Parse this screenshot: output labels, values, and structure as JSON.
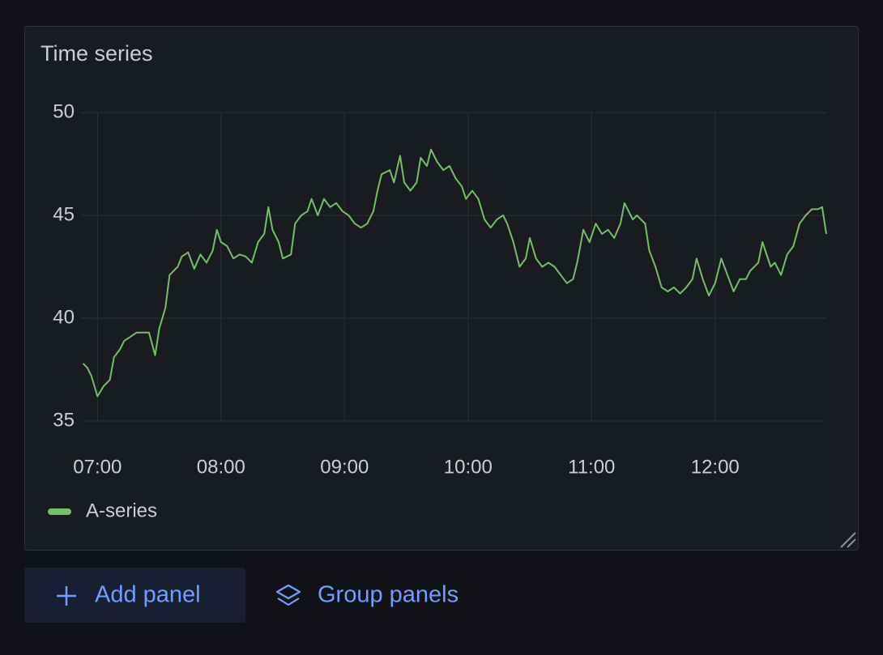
{
  "chart_data": {
    "type": "line",
    "title": "Time series",
    "x": [
      "06:53",
      "06:55",
      "06:57",
      "07:00",
      "07:03",
      "07:06",
      "07:08",
      "07:11",
      "07:13",
      "07:16",
      "07:19",
      "07:22",
      "07:25",
      "07:28",
      "07:30",
      "07:33",
      "07:35",
      "07:39",
      "07:41",
      "07:44",
      "07:47",
      "07:50",
      "07:53",
      "07:56",
      "07:58",
      "08:00",
      "08:03",
      "08:06",
      "08:09",
      "08:12",
      "08:15",
      "08:18",
      "08:21",
      "08:23",
      "08:25",
      "08:28",
      "08:30",
      "08:34",
      "08:36",
      "08:39",
      "08:42",
      "08:44",
      "08:47",
      "08:50",
      "08:53",
      "08:56",
      "08:59",
      "09:02",
      "09:05",
      "09:08",
      "09:11",
      "09:14",
      "09:16",
      "09:18",
      "09:22",
      "09:24",
      "09:27",
      "09:29",
      "09:32",
      "09:35",
      "09:37",
      "09:40",
      "09:42",
      "09:45",
      "09:48",
      "09:51",
      "09:54",
      "09:57",
      "09:59",
      "10:02",
      "10:05",
      "10:08",
      "10:11",
      "10:14",
      "10:17",
      "10:19",
      "10:22",
      "10:25",
      "10:28",
      "10:30",
      "10:33",
      "10:36",
      "10:39",
      "10:42",
      "10:45",
      "10:48",
      "10:51",
      "10:53",
      "10:56",
      "10:59",
      "11:02",
      "11:05",
      "11:08",
      "11:11",
      "11:14",
      "11:16",
      "11:20",
      "11:22",
      "11:26",
      "11:28",
      "11:31",
      "11:34",
      "11:37",
      "11:40",
      "11:43",
      "11:46",
      "11:49",
      "11:51",
      "11:54",
      "11:57",
      "12:00",
      "12:03",
      "12:06",
      "12:09",
      "12:12",
      "12:15",
      "12:17",
      "12:21",
      "12:23",
      "12:27",
      "12:29",
      "12:32",
      "12:35",
      "12:38",
      "12:41",
      "12:44",
      "12:47",
      "12:50",
      "12:52",
      "12:54"
    ],
    "series": [
      {
        "name": "A-series",
        "color": "#73bf69",
        "values": [
          37.8,
          37.6,
          37.2,
          36.2,
          36.7,
          37.0,
          38.1,
          38.5,
          38.9,
          39.1,
          39.3,
          39.3,
          39.3,
          38.2,
          39.5,
          40.5,
          42.1,
          42.5,
          43.0,
          43.2,
          42.4,
          43.1,
          42.7,
          43.3,
          44.3,
          43.7,
          43.5,
          42.9,
          43.1,
          43.0,
          42.7,
          43.7,
          44.1,
          45.4,
          44.3,
          43.7,
          42.9,
          43.1,
          44.6,
          45.0,
          45.2,
          45.8,
          45.0,
          45.8,
          45.4,
          45.6,
          45.2,
          45.0,
          44.6,
          44.4,
          44.6,
          45.2,
          46.2,
          47.0,
          47.2,
          46.6,
          47.9,
          46.6,
          46.2,
          46.6,
          47.8,
          47.4,
          48.2,
          47.6,
          47.2,
          47.4,
          46.8,
          46.4,
          45.8,
          46.2,
          45.8,
          44.8,
          44.4,
          44.8,
          45.0,
          44.6,
          43.7,
          42.5,
          42.9,
          43.9,
          42.9,
          42.5,
          42.7,
          42.5,
          42.1,
          41.7,
          41.9,
          42.7,
          44.3,
          43.7,
          44.6,
          44.1,
          44.3,
          43.9,
          44.6,
          45.6,
          44.8,
          45.0,
          44.6,
          43.3,
          42.5,
          41.5,
          41.3,
          41.5,
          41.2,
          41.5,
          41.9,
          42.9,
          41.9,
          41.1,
          41.7,
          42.9,
          42.1,
          41.3,
          41.9,
          41.9,
          42.3,
          42.7,
          43.7,
          42.5,
          42.7,
          42.1,
          43.1,
          43.5,
          44.6,
          45.0,
          45.3,
          45.3,
          45.4,
          44.1
        ]
      }
    ],
    "xlim": [
      "06:52",
      "12:54"
    ],
    "xticks": [
      "07:00",
      "08:00",
      "09:00",
      "10:00",
      "11:00",
      "12:00"
    ],
    "ylim": [
      35,
      50
    ],
    "yticks": [
      35,
      40,
      45,
      50
    ],
    "grid": true,
    "legend": "bottom-left"
  },
  "toolbar": {
    "buttons": [
      "Add panel",
      "Group panels"
    ]
  }
}
